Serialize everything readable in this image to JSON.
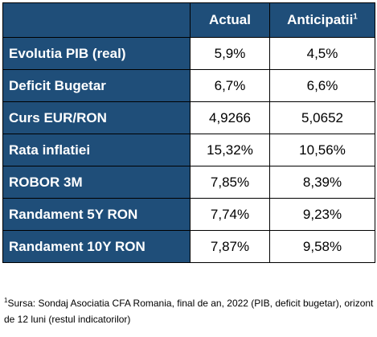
{
  "table": {
    "headers": {
      "actual": "Actual",
      "forecast": "Anticipatii",
      "forecast_note_mark": "1"
    },
    "rows": [
      {
        "label": "Evolutia PIB (real)",
        "actual": "5,9%",
        "forecast": "4,5%"
      },
      {
        "label": "Deficit Bugetar",
        "actual": "6,7%",
        "forecast": "6,6%"
      },
      {
        "label": "Curs EUR/RON",
        "actual": "4,9266",
        "forecast": "5,0652"
      },
      {
        "label": "Rata inflatiei",
        "actual": "15,32%",
        "forecast": "10,56%"
      },
      {
        "label": "ROBOR 3M",
        "actual": "7,85%",
        "forecast": "8,39%"
      },
      {
        "label": "Randament 5Y RON",
        "actual": "7,74%",
        "forecast": "9,23%"
      },
      {
        "label": "Randament 10Y RON",
        "actual": "7,87%",
        "forecast": "9,58%"
      }
    ],
    "colors": {
      "header_bg": "#1f4e79",
      "header_text": "#ffffff",
      "border": "#000000"
    }
  },
  "footnote": {
    "mark": "1",
    "text": "Sursa: Sondaj Asociatia CFA Romania, final de an, 2022 (PIB, deficit bugetar), orizont de 12 luni (restul indicatorilor)"
  }
}
